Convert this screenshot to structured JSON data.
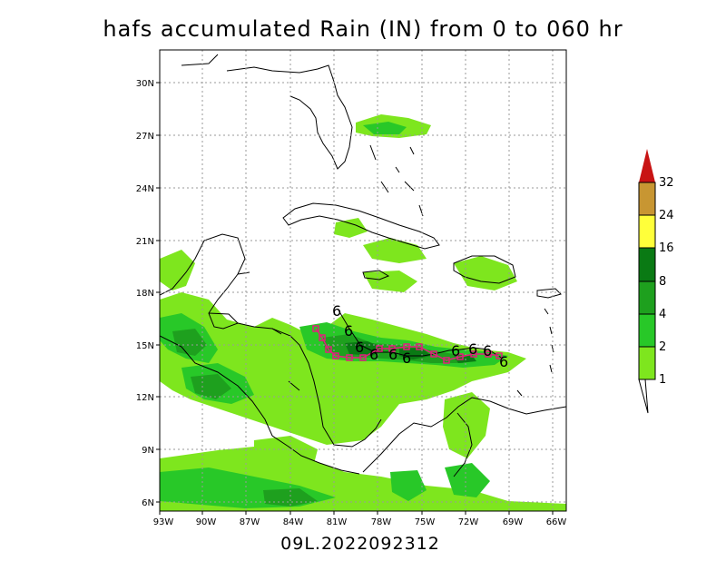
{
  "title": "hafs accumulated Rain (IN) from 0 to 060 hr",
  "footer": "09L.2022092312",
  "map": {
    "lon_ticks": [
      "93W",
      "90W",
      "87W",
      "84W",
      "81W",
      "78W",
      "75W",
      "72W",
      "69W",
      "66W"
    ],
    "lat_ticks": [
      "30N",
      "27N",
      "24N",
      "21N",
      "18N",
      "15N",
      "12N",
      "9N",
      "6N"
    ],
    "grid": true
  },
  "colorbar": {
    "labels": [
      "1",
      "2",
      "4",
      "8",
      "16",
      "24",
      "32"
    ],
    "colors": [
      "#7ee61e",
      "#28c828",
      "#1ea01e",
      "#0a7a14",
      "#ffff3a",
      "#c89632",
      "#f0a03c",
      "#c81414"
    ]
  },
  "track": {
    "symbol": "6",
    "square_color": "#e0207c",
    "line_color": "#000000"
  }
}
